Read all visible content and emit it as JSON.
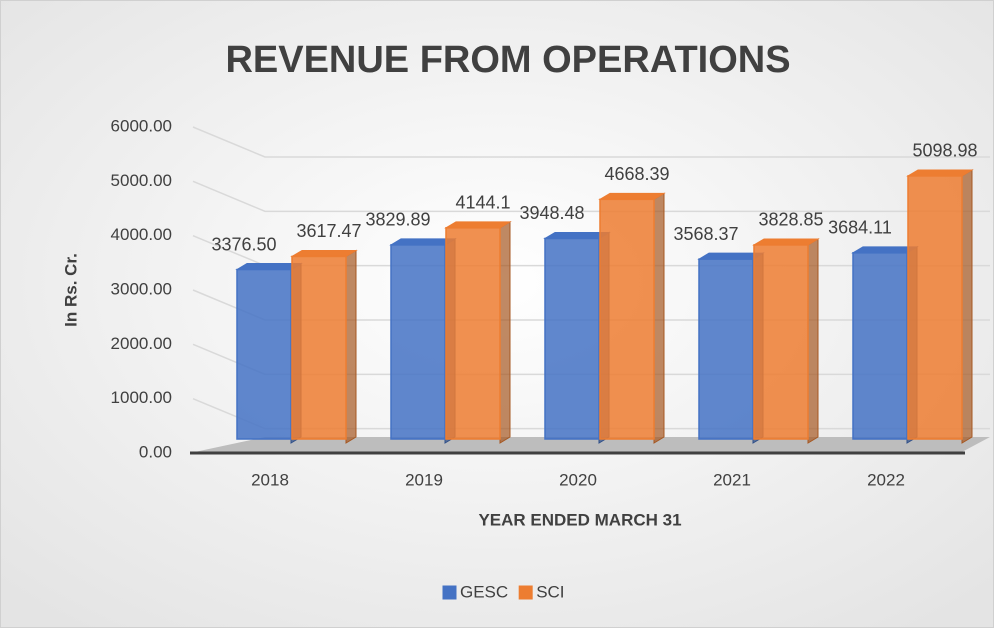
{
  "chart_data": {
    "type": "bar",
    "title": "REVENUE FROM OPERATIONS",
    "y_label": "In Rs. Cr.",
    "x_label": "YEAR ENDED MARCH 31",
    "categories": [
      "2018",
      "2019",
      "2020",
      "2021",
      "2022"
    ],
    "series": [
      {
        "name": "GESC",
        "color": "#4472c4",
        "values": [
          3376.5,
          3829.89,
          3948.48,
          3568.37,
          3684.11
        ],
        "value_labels": [
          "3376.50",
          "3829.89",
          "3948.48",
          "3568.37",
          "3684.11"
        ]
      },
      {
        "name": "SCI",
        "color": "#ed7d31",
        "values": [
          3617.47,
          4144.1,
          4668.39,
          3828.85,
          5098.98
        ],
        "value_labels": [
          "3617.47",
          "4144.1",
          "4668.39",
          "3828.85",
          "5098.98"
        ]
      }
    ],
    "ylim": [
      0,
      6000
    ],
    "yticks": [
      {
        "value": 0,
        "label": "0.00"
      },
      {
        "value": 1000,
        "label": "1000.00"
      },
      {
        "value": 2000,
        "label": "2000.00"
      },
      {
        "value": 3000,
        "label": "3000.00"
      },
      {
        "value": 4000,
        "label": "4000.00"
      },
      {
        "value": 5000,
        "label": "5000.00"
      },
      {
        "value": 6000,
        "label": "6000.00"
      }
    ],
    "grid": true,
    "legend": "bottom"
  }
}
